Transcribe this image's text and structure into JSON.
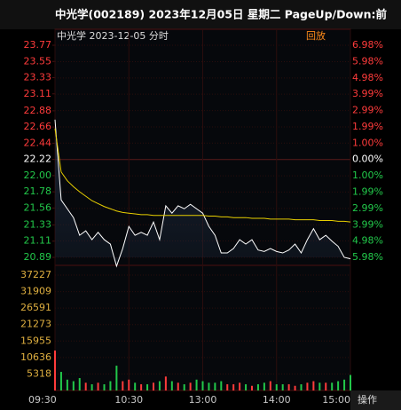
{
  "chart_data": {
    "type": "line",
    "title": "中光学(002189) 2023年12月05日 星期二 PageUp/Down:前",
    "panel_label": "中光学  2023-12-05 分时",
    "replay_label": "回放",
    "action_label": "操作",
    "up_color": "#ff3b3b",
    "down_color": "#22c84a",
    "flat_color": "#ffffff",
    "x": [
      0,
      5,
      10,
      15,
      20,
      25,
      30,
      35,
      40,
      45,
      50,
      55,
      60,
      65,
      70,
      75,
      80,
      85,
      90,
      95,
      100,
      105,
      110,
      115,
      120,
      125,
      130,
      135,
      140,
      145,
      150,
      155,
      160,
      165,
      170,
      175,
      180,
      185,
      190,
      195,
      200,
      205,
      210,
      215,
      220,
      225,
      230,
      235,
      240
    ],
    "xlim": [
      0,
      240
    ],
    "xticks": [
      {
        "value": 0,
        "label": "09:30"
      },
      {
        "value": 60,
        "label": "10:30"
      },
      {
        "value": 120,
        "label": "13:00"
      },
      {
        "value": 180,
        "label": "14:00"
      },
      {
        "value": 240,
        "label": "15:00"
      }
    ],
    "ylim": [
      20.89,
      23.77
    ],
    "yticks": [
      23.77,
      23.55,
      23.33,
      23.11,
      22.88,
      22.66,
      22.44,
      22.22,
      {
        "value": 22.0,
        "label": "22.00"
      },
      21.78,
      21.56,
      21.33,
      21.11,
      20.89
    ],
    "y2lim": [
      -5.98,
      6.98
    ],
    "y2ticks": [
      {
        "value": 6.98,
        "label": "6.98%"
      },
      {
        "value": 5.98,
        "label": "5.98%"
      },
      {
        "value": 4.98,
        "label": "4.98%"
      },
      {
        "value": 3.99,
        "label": "3.99%"
      },
      {
        "value": 2.99,
        "label": "2.99%"
      },
      {
        "value": 1.99,
        "label": "1.99%"
      },
      {
        "value": 1.0,
        "label": "1.00%"
      },
      {
        "value": 0,
        "label": "0.00%"
      },
      {
        "value": -1.0,
        "label": "1.00%"
      },
      {
        "value": -1.99,
        "label": "1.99%"
      },
      {
        "value": -2.99,
        "label": "2.99%"
      },
      {
        "value": -3.99,
        "label": "3.99%"
      },
      {
        "value": -4.98,
        "label": "4.98%"
      },
      {
        "value": -5.98,
        "label": "5.98%"
      }
    ],
    "series": [
      {
        "color": "#ffffff",
        "values": [
          22.76,
          21.67,
          21.55,
          21.43,
          21.19,
          21.25,
          21.13,
          21.23,
          21.13,
          21.07,
          20.77,
          21.01,
          21.31,
          21.19,
          21.23,
          21.19,
          21.37,
          21.13,
          21.59,
          21.49,
          21.59,
          21.55,
          21.61,
          21.55,
          21.49,
          21.31,
          21.19,
          20.95,
          20.95,
          21.01,
          21.13,
          21.07,
          21.13,
          20.99,
          20.97,
          21.01,
          20.97,
          20.95,
          20.99,
          21.07,
          20.95,
          21.13,
          21.28,
          21.13,
          21.19,
          21.11,
          21.04,
          20.89,
          20.87
        ]
      },
      {
        "color": "#e8cf00",
        "values": [
          22.64,
          22.05,
          21.93,
          21.85,
          21.78,
          21.72,
          21.66,
          21.62,
          21.58,
          21.55,
          21.52,
          21.5,
          21.49,
          21.48,
          21.47,
          21.47,
          21.46,
          21.46,
          21.46,
          21.46,
          21.46,
          21.46,
          21.46,
          21.46,
          21.46,
          21.45,
          21.45,
          21.44,
          21.44,
          21.43,
          21.43,
          21.43,
          21.42,
          21.42,
          21.42,
          21.41,
          21.41,
          21.41,
          21.41,
          21.4,
          21.4,
          21.4,
          21.4,
          21.39,
          21.39,
          21.39,
          21.38,
          21.38,
          21.37
        ]
      }
    ],
    "volume": {
      "tick_color": "#e0b040",
      "ylim": [
        0,
        37227
      ],
      "yticks": [
        37227,
        31909,
        26591,
        21273,
        15955,
        10636,
        5318
      ],
      "values": [
        12900,
        6000,
        3500,
        3000,
        4000,
        2500,
        2000,
        2500,
        2000,
        3000,
        8000,
        3000,
        3500,
        2500,
        2000,
        2000,
        2500,
        3000,
        4500,
        3000,
        2500,
        2000,
        2500,
        3500,
        3000,
        2500,
        2500,
        3000,
        2000,
        2000,
        2500,
        2000,
        1500,
        2000,
        2500,
        3000,
        2000,
        2000,
        2000,
        1500,
        2000,
        2500,
        3000,
        2500,
        2500,
        2500,
        3000,
        3500,
        5000
      ]
    }
  }
}
